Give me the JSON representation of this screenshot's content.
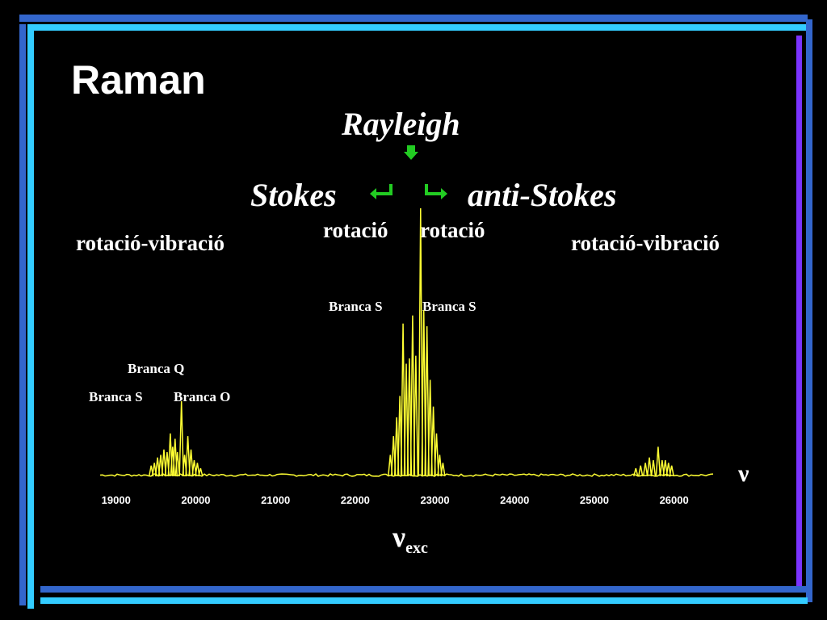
{
  "slide": {
    "title": "Raman",
    "colors": {
      "frame_blue": "#3366cc",
      "frame_cyan": "#33ccff",
      "frame_purple": "#7a33ff",
      "spectrum": "#ffff33",
      "arrow": "#22cc22"
    }
  },
  "labels": {
    "rayleigh": "Rayleigh",
    "stokes": "Stokes",
    "anti_stokes": "anti-Stokes",
    "rot_left": "rotació",
    "rot_right": "rotació",
    "rotvib_left": "rotació-vibració",
    "rotvib_right": "rotació-vibració",
    "branca_s_center_left": "Branca S",
    "branca_s_center_right": "Branca S",
    "branca_q": "Branca Q",
    "branca_s_left": "Branca S",
    "branca_o": "Branca O",
    "nu": "ν",
    "nu_exc_symbol": "ν",
    "nu_exc_sub": "exc"
  },
  "icons": {
    "rayleigh_arrow": "down-arrow-icon",
    "stokes_arrow": "return-left-arrow-icon",
    "anti_stokes_arrow": "return-right-arrow-icon"
  },
  "chart_data": {
    "type": "line",
    "title": "",
    "xlabel": "ν",
    "ylabel": "",
    "xlim": [
      18800,
      26500
    ],
    "ylim": [
      0,
      100
    ],
    "xticks": [
      19000,
      20000,
      21000,
      22000,
      23000,
      24000,
      25000,
      26000
    ],
    "baseline": 2,
    "series": [
      {
        "peaks": [
          {
            "x": 19440,
            "y": 4
          },
          {
            "x": 19480,
            "y": 5
          },
          {
            "x": 19520,
            "y": 7
          },
          {
            "x": 19560,
            "y": 8
          },
          {
            "x": 19600,
            "y": 10
          },
          {
            "x": 19640,
            "y": 9
          },
          {
            "x": 19680,
            "y": 16
          },
          {
            "x": 19710,
            "y": 11
          },
          {
            "x": 19740,
            "y": 14
          },
          {
            "x": 19770,
            "y": 9
          },
          {
            "x": 19820,
            "y": 28
          },
          {
            "x": 19860,
            "y": 8
          },
          {
            "x": 19900,
            "y": 15
          },
          {
            "x": 19940,
            "y": 10
          },
          {
            "x": 19980,
            "y": 6
          },
          {
            "x": 20020,
            "y": 5
          },
          {
            "x": 20060,
            "y": 3
          },
          {
            "x": 22440,
            "y": 8
          },
          {
            "x": 22480,
            "y": 15
          },
          {
            "x": 22520,
            "y": 22
          },
          {
            "x": 22560,
            "y": 30
          },
          {
            "x": 22600,
            "y": 57
          },
          {
            "x": 22640,
            "y": 42
          },
          {
            "x": 22680,
            "y": 44
          },
          {
            "x": 22720,
            "y": 60
          },
          {
            "x": 22760,
            "y": 45
          },
          {
            "x": 22820,
            "y": 100
          },
          {
            "x": 22860,
            "y": 62
          },
          {
            "x": 22900,
            "y": 56
          },
          {
            "x": 22940,
            "y": 36
          },
          {
            "x": 22980,
            "y": 26
          },
          {
            "x": 23020,
            "y": 16
          },
          {
            "x": 23060,
            "y": 8
          },
          {
            "x": 23100,
            "y": 5
          },
          {
            "x": 25520,
            "y": 3
          },
          {
            "x": 25580,
            "y": 4
          },
          {
            "x": 25640,
            "y": 5
          },
          {
            "x": 25690,
            "y": 7
          },
          {
            "x": 25740,
            "y": 6
          },
          {
            "x": 25800,
            "y": 11
          },
          {
            "x": 25850,
            "y": 6
          },
          {
            "x": 25890,
            "y": 6
          },
          {
            "x": 25930,
            "y": 5
          },
          {
            "x": 25970,
            "y": 4
          }
        ]
      }
    ]
  }
}
